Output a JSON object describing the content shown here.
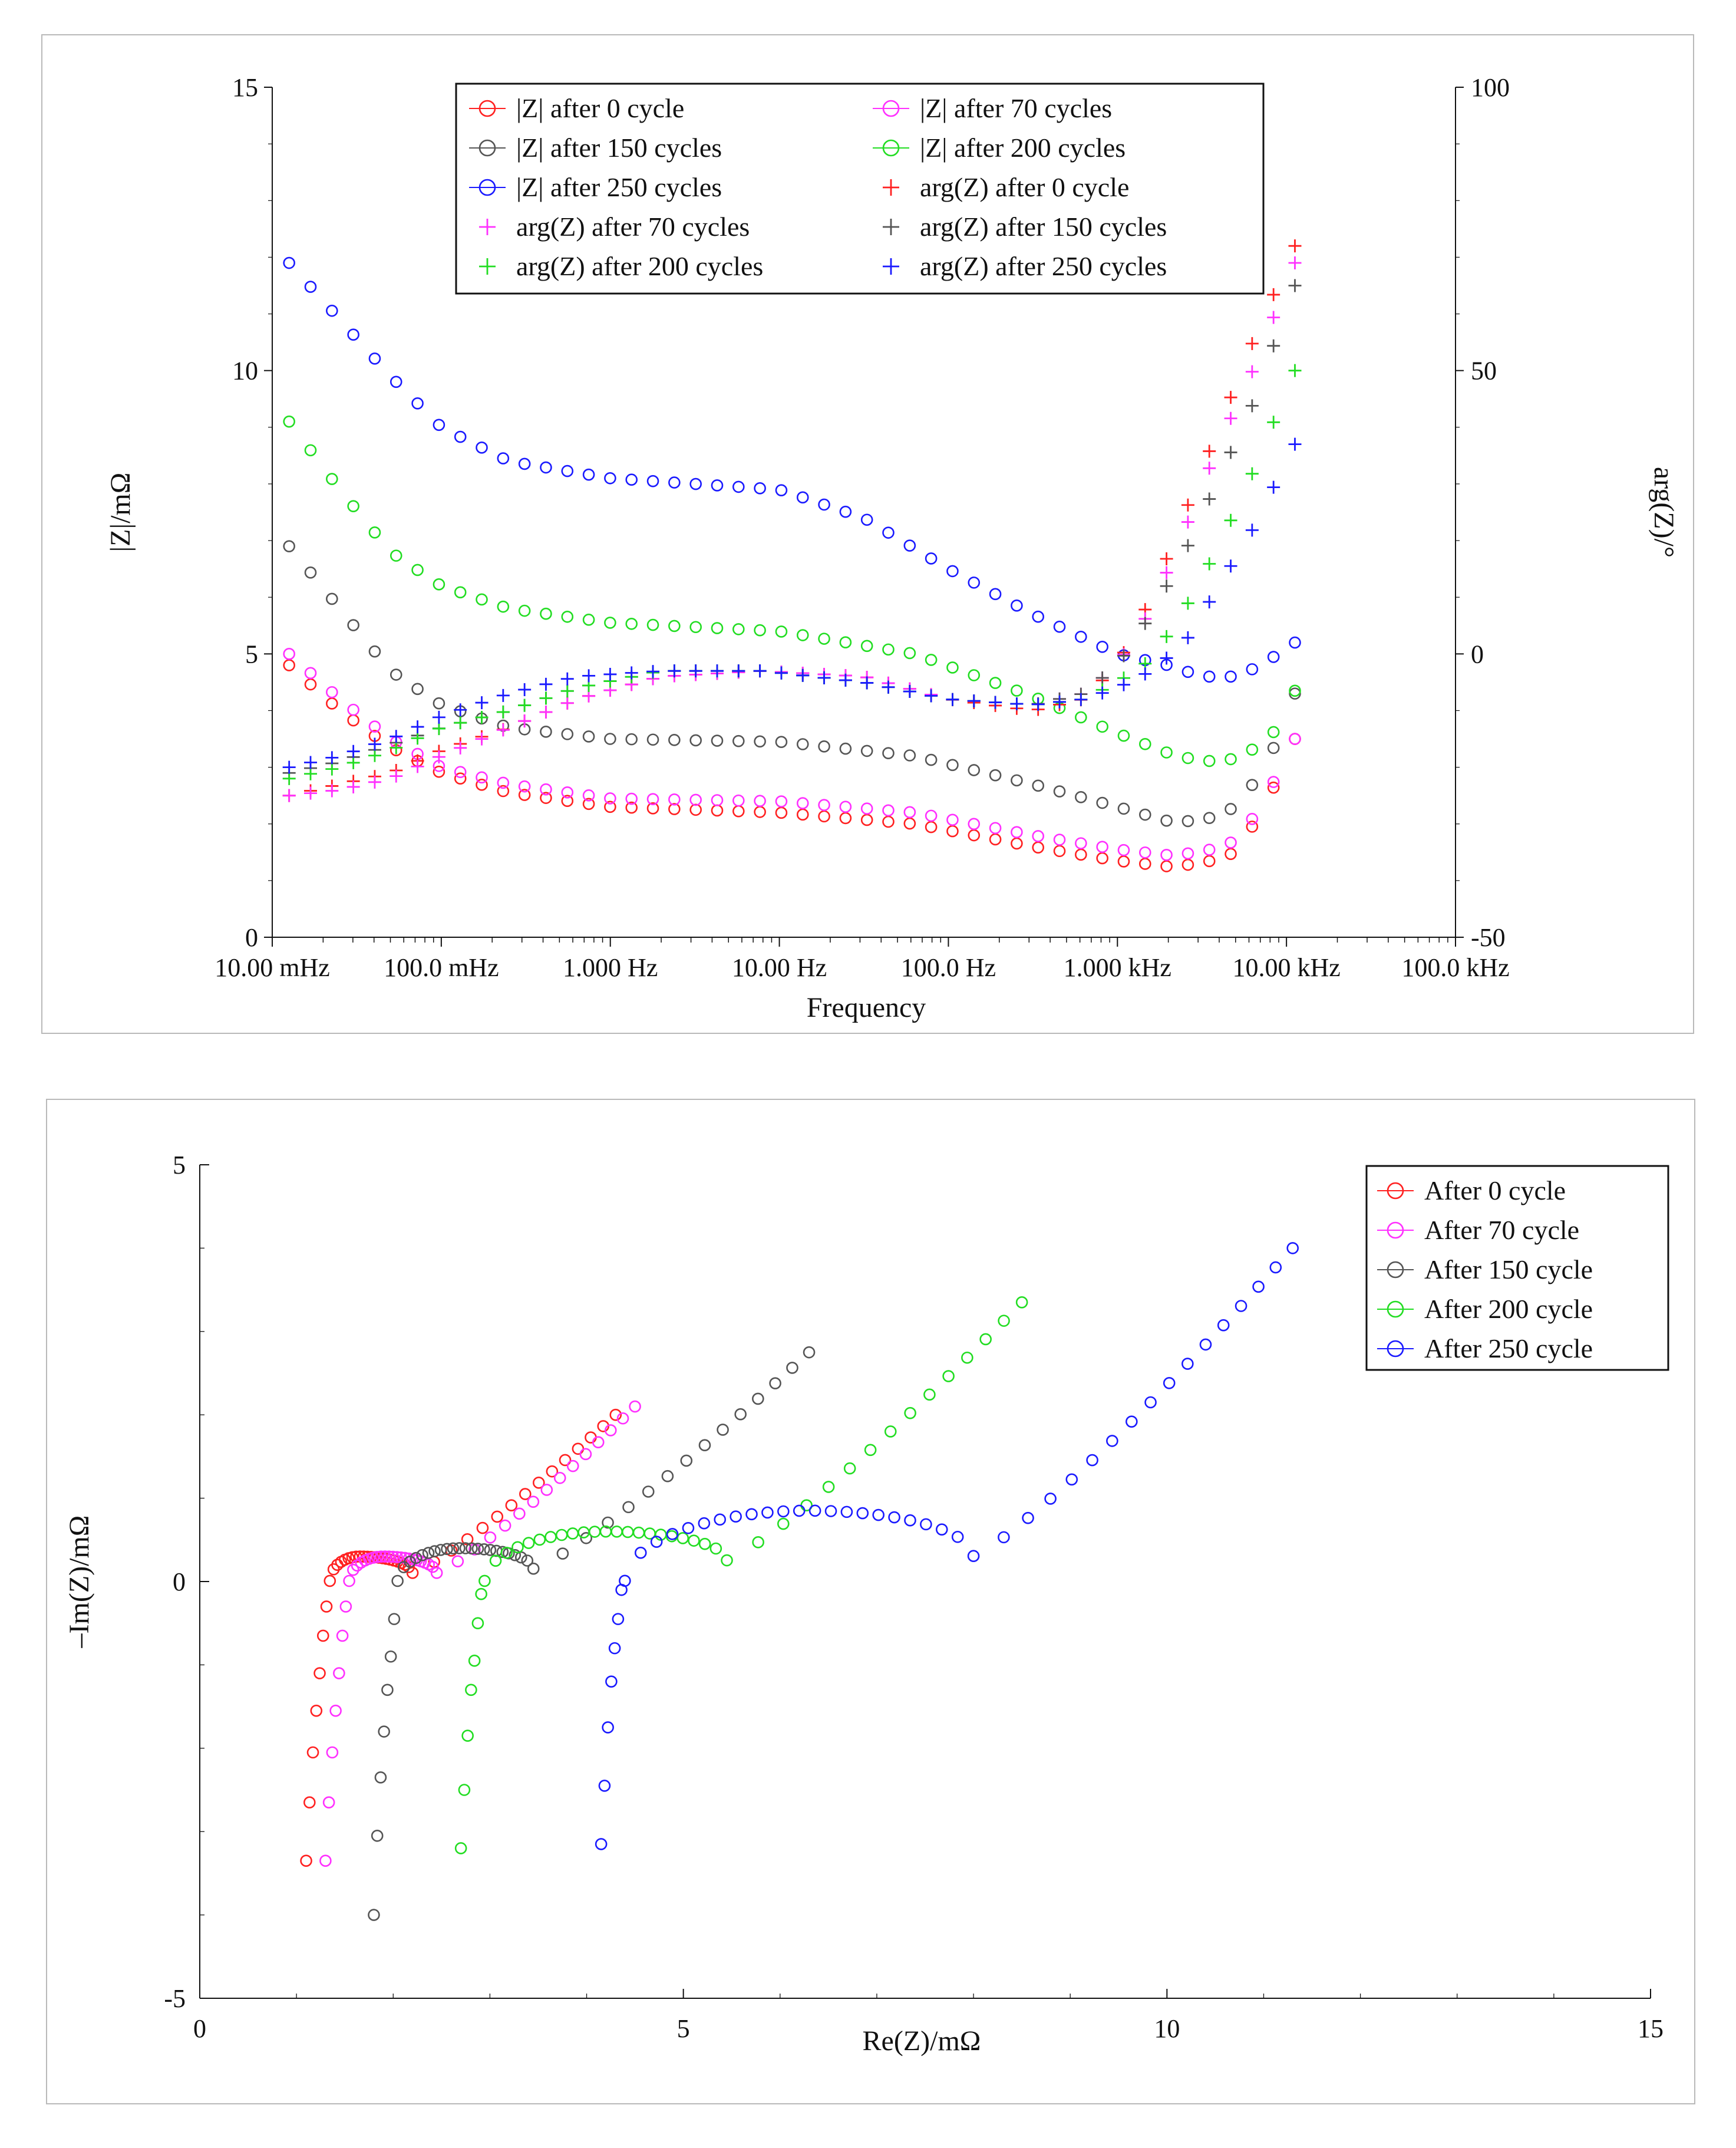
{
  "colors": {
    "after_0": "#ff2020",
    "after_70": "#ff30ff",
    "after_150": "#555555",
    "after_200": "#22dd22",
    "after_250": "#1a1aff"
  },
  "chart_data": [
    {
      "type": "scatter",
      "name": "bode",
      "title": "",
      "xlabel": "Frequency",
      "ylabel": "|Z|/mΩ",
      "y2label": "arg(Z)/°",
      "xscale": "log",
      "xlim": [
        0.01,
        100000
      ],
      "ylim": [
        0,
        15
      ],
      "y2lim": [
        -50,
        100
      ],
      "x_ticks": [
        0.01,
        0.1,
        1,
        10,
        100,
        1000,
        10000,
        100000
      ],
      "x_tick_labels": [
        "10.00 mHz",
        "100.0 mHz",
        "1.000 Hz",
        "10.00 Hz",
        "100.0 Hz",
        "1.000 kHz",
        "10.00 kHz",
        "100.0 kHz"
      ],
      "y_ticks": [
        0,
        5,
        10,
        15
      ],
      "y_tick_labels": [
        "0",
        "5",
        "10",
        "15"
      ],
      "y2_ticks": [
        -50,
        0,
        50,
        100
      ],
      "y2_tick_labels": [
        "-50",
        "0",
        "50",
        "100"
      ],
      "legend_position": "top-center",
      "legend": [
        {
          "label": "|Z| after 0 cycle",
          "marker": "circle",
          "color_key": "after_0"
        },
        {
          "label": "|Z| after 70 cycles",
          "marker": "circle",
          "color_key": "after_70"
        },
        {
          "label": "|Z| after 150 cycles",
          "marker": "circle",
          "color_key": "after_150"
        },
        {
          "label": "|Z| after 200 cycles",
          "marker": "circle",
          "color_key": "after_200"
        },
        {
          "label": "|Z| after 250 cycles",
          "marker": "circle",
          "color_key": "after_250"
        },
        {
          "label": "arg(Z) after 0 cycle",
          "marker": "plus",
          "color_key": "after_0"
        },
        {
          "label": "arg(Z) after 70 cycles",
          "marker": "plus",
          "color_key": "after_70"
        },
        {
          "label": "arg(Z) after 150 cycles",
          "marker": "plus",
          "color_key": "after_150"
        },
        {
          "label": "arg(Z) after 200 cycles",
          "marker": "plus",
          "color_key": "after_200"
        },
        {
          "label": "arg(Z) after 250 cycles",
          "marker": "plus",
          "color_key": "after_250"
        }
      ],
      "n_points": 48,
      "logf_range": [
        -1.9,
        4.05
      ],
      "series": [
        {
          "name": "|Z| after 0 cycle",
          "axis": "left",
          "marker": "circle",
          "color_key": "after_0",
          "anchors": [
            [
              -1.9,
              4.8
            ],
            [
              -1.6,
              4.0
            ],
            [
              -1.3,
              3.35
            ],
            [
              -1.0,
              2.9
            ],
            [
              -0.6,
              2.55
            ],
            [
              0.0,
              2.3
            ],
            [
              1.0,
              2.2
            ],
            [
              1.8,
              2.0
            ],
            [
              2.5,
              1.6
            ],
            [
              3.0,
              1.35
            ],
            [
              3.3,
              1.25
            ],
            [
              3.5,
              1.3
            ],
            [
              3.7,
              1.5
            ],
            [
              3.85,
              2.2
            ],
            [
              3.95,
              2.8
            ],
            [
              4.05,
              3.5
            ]
          ]
        },
        {
          "name": "|Z| after 70 cycles",
          "axis": "left",
          "marker": "circle",
          "color_key": "after_70",
          "anchors": [
            [
              -1.9,
              5.0
            ],
            [
              -1.6,
              4.2
            ],
            [
              -1.3,
              3.5
            ],
            [
              -1.0,
              3.0
            ],
            [
              -0.6,
              2.7
            ],
            [
              0.0,
              2.45
            ],
            [
              1.0,
              2.4
            ],
            [
              1.8,
              2.2
            ],
            [
              2.5,
              1.8
            ],
            [
              3.0,
              1.55
            ],
            [
              3.3,
              1.45
            ],
            [
              3.5,
              1.5
            ],
            [
              3.7,
              1.7
            ],
            [
              3.85,
              2.3
            ],
            [
              3.95,
              2.9
            ],
            [
              4.05,
              3.5
            ]
          ]
        },
        {
          "name": "|Z| after 150 cycles",
          "axis": "left",
          "marker": "circle",
          "color_key": "after_150",
          "anchors": [
            [
              -1.9,
              6.9
            ],
            [
              -1.6,
              5.8
            ],
            [
              -1.3,
              4.7
            ],
            [
              -1.0,
              4.1
            ],
            [
              -0.6,
              3.7
            ],
            [
              0.0,
              3.5
            ],
            [
              1.0,
              3.45
            ],
            [
              1.8,
              3.2
            ],
            [
              2.5,
              2.7
            ],
            [
              3.0,
              2.3
            ],
            [
              3.3,
              2.05
            ],
            [
              3.5,
              2.05
            ],
            [
              3.7,
              2.3
            ],
            [
              3.85,
              2.9
            ],
            [
              3.95,
              3.5
            ],
            [
              4.05,
              4.3
            ]
          ]
        },
        {
          "name": "|Z| after 200 cycles",
          "axis": "left",
          "marker": "circle",
          "color_key": "after_200",
          "anchors": [
            [
              -1.9,
              9.1
            ],
            [
              -1.6,
              7.9
            ],
            [
              -1.3,
              6.8
            ],
            [
              -1.0,
              6.2
            ],
            [
              -0.6,
              5.8
            ],
            [
              0.0,
              5.55
            ],
            [
              1.0,
              5.4
            ],
            [
              1.8,
              5.0
            ],
            [
              2.5,
              4.25
            ],
            [
              3.0,
              3.6
            ],
            [
              3.3,
              3.25
            ],
            [
              3.5,
              3.1
            ],
            [
              3.7,
              3.15
            ],
            [
              3.85,
              3.4
            ],
            [
              3.95,
              3.7
            ],
            [
              4.05,
              4.35
            ]
          ]
        },
        {
          "name": "|Z| after 250 cycles",
          "axis": "left",
          "marker": "circle",
          "color_key": "after_250",
          "anchors": [
            [
              -1.9,
              11.9
            ],
            [
              -1.6,
              10.9
            ],
            [
              -1.3,
              9.9
            ],
            [
              -1.0,
              9.0
            ],
            [
              -0.6,
              8.4
            ],
            [
              0.0,
              8.1
            ],
            [
              1.0,
              7.9
            ],
            [
              1.5,
              7.4
            ],
            [
              2.0,
              6.5
            ],
            [
              2.5,
              5.7
            ],
            [
              3.0,
              5.0
            ],
            [
              3.3,
              4.8
            ],
            [
              3.5,
              4.6
            ],
            [
              3.7,
              4.6
            ],
            [
              3.85,
              4.8
            ],
            [
              4.05,
              5.2
            ]
          ]
        },
        {
          "name": "arg(Z) after 0 cycle",
          "axis": "right",
          "marker": "plus",
          "color_key": "after_0",
          "anchors": [
            [
              -1.9,
              -25
            ],
            [
              -1.6,
              -23
            ],
            [
              -1.3,
              -21
            ],
            [
              -1.0,
              -17
            ],
            [
              -0.6,
              -13
            ],
            [
              -0.2,
              -8
            ],
            [
              0.3,
              -4
            ],
            [
              0.9,
              -3
            ],
            [
              1.5,
              -4
            ],
            [
              2.0,
              -8
            ],
            [
              2.5,
              -10
            ],
            [
              2.8,
              -8
            ],
            [
              3.0,
              -2
            ],
            [
              3.2,
              10
            ],
            [
              3.4,
              25
            ],
            [
              3.6,
              40
            ],
            [
              3.8,
              55
            ],
            [
              4.05,
              72
            ]
          ]
        },
        {
          "name": "arg(Z) after 70 cycles",
          "axis": "right",
          "marker": "plus",
          "color_key": "after_70",
          "anchors": [
            [
              -1.9,
              -25
            ],
            [
              -1.6,
              -24
            ],
            [
              -1.3,
              -22
            ],
            [
              -1.0,
              -18
            ],
            [
              -0.6,
              -13
            ],
            [
              -0.2,
              -8
            ],
            [
              0.3,
              -4
            ],
            [
              0.9,
              -3
            ],
            [
              1.5,
              -4
            ],
            [
              2.0,
              -8
            ],
            [
              2.5,
              -9
            ],
            [
              2.8,
              -7
            ],
            [
              3.0,
              -2
            ],
            [
              3.2,
              8
            ],
            [
              3.4,
              22
            ],
            [
              3.6,
              37
            ],
            [
              3.8,
              50
            ],
            [
              4.05,
              69
            ]
          ]
        },
        {
          "name": "arg(Z) after 150 cycles",
          "axis": "right",
          "marker": "plus",
          "color_key": "after_150",
          "anchors": [
            [
              -1.9,
              -21
            ],
            [
              -1.6,
              -19
            ],
            [
              -1.3,
              -16
            ],
            [
              -1.0,
              -13
            ],
            [
              -0.6,
              -10
            ],
            [
              -0.2,
              -6
            ],
            [
              0.3,
              -3
            ],
            [
              0.9,
              -3
            ],
            [
              1.5,
              -5
            ],
            [
              2.0,
              -8
            ],
            [
              2.5,
              -9
            ],
            [
              2.8,
              -7
            ],
            [
              3.0,
              -2
            ],
            [
              3.2,
              7
            ],
            [
              3.4,
              18
            ],
            [
              3.6,
              31
            ],
            [
              3.8,
              44
            ],
            [
              4.05,
              65
            ]
          ]
        },
        {
          "name": "arg(Z) after 200 cycles",
          "axis": "right",
          "marker": "plus",
          "color_key": "after_200",
          "anchors": [
            [
              -1.9,
              -22
            ],
            [
              -1.6,
              -20
            ],
            [
              -1.3,
              -17
            ],
            [
              -1.0,
              -13
            ],
            [
              -0.6,
              -10
            ],
            [
              -0.2,
              -6
            ],
            [
              0.3,
              -3
            ],
            [
              0.9,
              -3
            ],
            [
              1.5,
              -5
            ],
            [
              2.0,
              -8
            ],
            [
              2.5,
              -9
            ],
            [
              2.8,
              -8
            ],
            [
              3.0,
              -5
            ],
            [
              3.2,
              -1
            ],
            [
              3.4,
              8
            ],
            [
              3.6,
              19
            ],
            [
              3.8,
              32
            ],
            [
              4.05,
              50
            ]
          ]
        },
        {
          "name": "arg(Z) after 250 cycles",
          "axis": "right",
          "marker": "plus",
          "color_key": "after_250",
          "anchors": [
            [
              -1.9,
              -20
            ],
            [
              -1.6,
              -18
            ],
            [
              -1.3,
              -15
            ],
            [
              -1.0,
              -11
            ],
            [
              -0.6,
              -7
            ],
            [
              -0.2,
              -4
            ],
            [
              0.3,
              -3
            ],
            [
              0.9,
              -3
            ],
            [
              1.5,
              -5
            ],
            [
              2.0,
              -8
            ],
            [
              2.5,
              -9
            ],
            [
              2.8,
              -8
            ],
            [
              3.0,
              -6
            ],
            [
              3.2,
              -3
            ],
            [
              3.4,
              2
            ],
            [
              3.6,
              12
            ],
            [
              3.8,
              22
            ],
            [
              4.05,
              37
            ]
          ]
        }
      ]
    },
    {
      "type": "scatter",
      "name": "nyquist",
      "title": "",
      "xlabel": "Re(Z)/mΩ",
      "ylabel": "–Im(Z)/mΩ",
      "xlim": [
        0,
        15
      ],
      "ylim": [
        -5,
        5
      ],
      "x_ticks": [
        0,
        5,
        10,
        15
      ],
      "x_tick_labels": [
        "0",
        "5",
        "10",
        "15"
      ],
      "y_ticks": [
        -5,
        0,
        5
      ],
      "y_tick_labels": [
        "-5",
        "0",
        "5"
      ],
      "legend_position": "top-right",
      "series": [
        {
          "name": "After 0 cycle",
          "color_key": "after_0",
          "ReZ_range": [
            1.1,
            2.2
          ],
          "high_freq_Im": [
            -3.35,
            -2.65,
            -2.05,
            -1.55,
            -1.1,
            -0.65,
            -0.3
          ],
          "arc": {
            "center": 1.65,
            "radius": 0.55,
            "height": 0.3,
            "min_Im": 0.1
          },
          "tail_end": [
            4.3,
            2.0
          ],
          "tail_points": 14
        },
        {
          "name": "After 70 cycle",
          "color_key": "after_70",
          "ReZ_range": [
            1.3,
            2.45
          ],
          "high_freq_Im": [
            -3.35,
            -2.65,
            -2.05,
            -1.55,
            -1.1,
            -0.65,
            -0.3
          ],
          "arc": {
            "center": 1.9,
            "radius": 0.6,
            "height": 0.3,
            "min_Im": 0.1
          },
          "tail_end": [
            4.5,
            2.1
          ],
          "tail_points": 14
        },
        {
          "name": "After 150 cycle",
          "color_key": "after_150",
          "ReZ_range": [
            1.8,
            3.45
          ],
          "high_freq_Im": [
            -4.0,
            -3.05,
            -2.35,
            -1.8,
            -1.3,
            -0.9,
            -0.45
          ],
          "arc": {
            "center": 2.7,
            "radius": 0.8,
            "height": 0.4,
            "min_Im": 0.15
          },
          "tail_end": [
            6.3,
            2.75
          ],
          "tail_points": 14
        },
        {
          "name": "After 200 cycle",
          "color_key": "after_200",
          "ReZ_range": [
            2.7,
            5.45
          ],
          "high_freq_Im": [
            -3.2,
            -2.5,
            -1.85,
            -1.3,
            -0.95,
            -0.5,
            -0.15
          ],
          "arc": {
            "center": 4.2,
            "radius": 1.35,
            "height": 0.6,
            "min_Im": 0.25
          },
          "tail_end": [
            8.5,
            3.35
          ],
          "tail_points": 14
        },
        {
          "name": "After 250 cycle",
          "color_key": "after_250",
          "ReZ_range": [
            4.15,
            8.0
          ],
          "high_freq_Im": [
            -3.15,
            -2.45,
            -1.75,
            -1.2,
            -0.8,
            -0.45,
            -0.1
          ],
          "arc": {
            "center": 6.3,
            "radius": 1.75,
            "height": 0.85,
            "min_Im": 0.3
          },
          "tail_end": [
            11.3,
            4.0
          ],
          "tail_points": 16
        }
      ],
      "legend": [
        {
          "label": "After 0 cycle",
          "color_key": "after_0"
        },
        {
          "label": "After 70 cycle",
          "color_key": "after_70"
        },
        {
          "label": "After 150 cycle",
          "color_key": "after_150"
        },
        {
          "label": "After 200 cycle",
          "color_key": "after_200"
        },
        {
          "label": "After 250 cycle",
          "color_key": "after_250"
        }
      ]
    }
  ]
}
